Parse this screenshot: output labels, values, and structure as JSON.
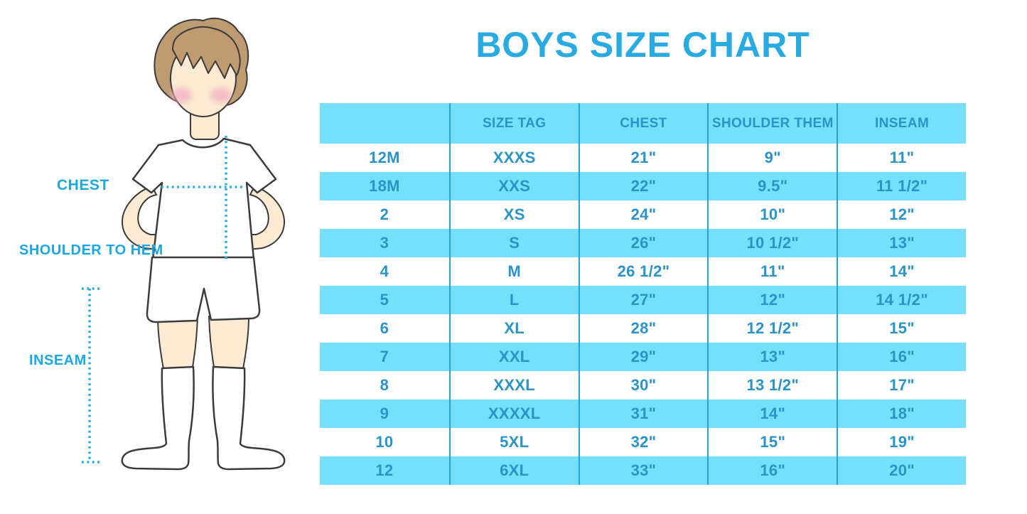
{
  "page_title": "BOYS SIZE CHART",
  "colors": {
    "title_blue": "#29ABE2",
    "header_bg": "#76E0FA",
    "row_alt_bg": "#76E0FA",
    "row_bg": "#FFFFFF",
    "table_text": "#2B93C8",
    "divider": "#2AA3D8",
    "label_blue": "#1CA7E2",
    "dotted_line": "#29ACE2",
    "skin": "#FCEBD2",
    "hair": "#BE9B70",
    "blush": "#F2AFC0",
    "outline": "#3B3B3B"
  },
  "diagram": {
    "labels": {
      "chest": "CHEST",
      "shoulder_to_hem": "SHOULDER TO HEM",
      "inseam": "INSEAM"
    }
  },
  "chart_data": {
    "type": "table",
    "title": "BOYS SIZE CHART",
    "columns": [
      "",
      "SIZE TAG",
      "CHEST",
      "SHOULDER THEM",
      "INSEAM"
    ],
    "rows": [
      [
        "12M",
        "XXXS",
        "21\"",
        "9\"",
        "11\""
      ],
      [
        "18M",
        "XXS",
        "22\"",
        "9.5\"",
        "11 1/2\""
      ],
      [
        "2",
        "XS",
        "24\"",
        "10\"",
        "12\""
      ],
      [
        "3",
        "S",
        "26\"",
        "10 1/2\"",
        "13\""
      ],
      [
        "4",
        "M",
        "26 1/2\"",
        "11\"",
        "14\""
      ],
      [
        "5",
        "L",
        "27\"",
        "12\"",
        "14 1/2\""
      ],
      [
        "6",
        "XL",
        "28\"",
        "12 1/2\"",
        "15\""
      ],
      [
        "7",
        "XXL",
        "29\"",
        "13\"",
        "16\""
      ],
      [
        "8",
        "XXXL",
        "30\"",
        "13 1/2\"",
        "17\""
      ],
      [
        "9",
        "XXXXL",
        "31\"",
        "14\"",
        "18\""
      ],
      [
        "10",
        "5XL",
        "32\"",
        "15\"",
        "19\""
      ],
      [
        "12",
        "6XL",
        "33\"",
        "16\"",
        "20\""
      ]
    ]
  }
}
